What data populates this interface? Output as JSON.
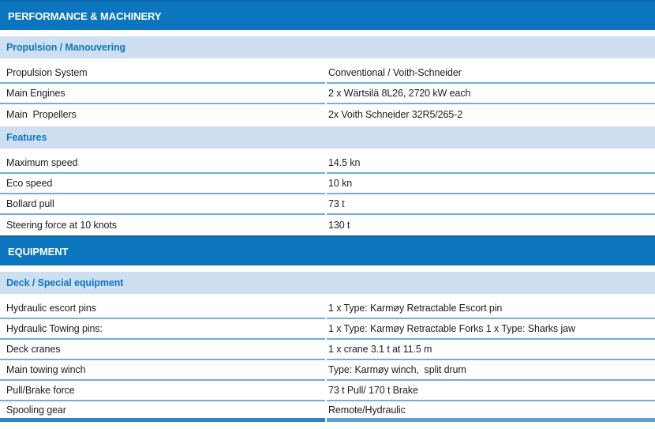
{
  "colors": {
    "section_header_bg": "#0b76be",
    "section_header_edge": "#0a65a8",
    "section_header_text": "#ffffff",
    "subsection_bg": "#cfdff2",
    "subsection_text": "#0e76bd",
    "row_text": "#1d1d1b",
    "row_divider": "#74aed8",
    "bottom_bar_left": "#2f85c2",
    "bottom_bar_right": "#639fcc"
  },
  "sections": [
    {
      "title": "PERFORMANCE & MACHINERY",
      "groups": [
        {
          "subtitle": "Propulsion / Manouvering",
          "rows": [
            {
              "label": "Propulsion System",
              "value": "Conventional / Voith-Schneider"
            },
            {
              "label": "Main Engines",
              "value": "2 x Wärtsilä 8L26, 2720 kW each"
            },
            {
              "label": "Main  Propellers",
              "value": "2x Voith Schneider 32R5/265-2"
            }
          ]
        },
        {
          "subtitle": "Features",
          "rows": [
            {
              "label": "Maximum speed",
              "value": "14.5 kn"
            },
            {
              "label": "Eco speed",
              "value": "10 kn"
            },
            {
              "label": "Bollard pull",
              "value": "73 t"
            },
            {
              "label": "Steering force at 10 knots",
              "value": "130 t"
            }
          ]
        }
      ]
    },
    {
      "title": "EQUIPMENT",
      "groups": [
        {
          "subtitle": "Deck / Special equipment",
          "rows": [
            {
              "label": "Hydraulic escort pins",
              "value": "1 x Type: Karmøy Retractable Escort pin"
            },
            {
              "label": "Hydraulic Towing pins:",
              "value": "1 x Type: Karmøy Retractable Forks 1 x Type: Sharks jaw"
            },
            {
              "label": "Deck cranes",
              "value": "1 x crane 3.1 t at 11.5 m"
            },
            {
              "label": "Main towing winch",
              "value": "Type: Karmøy winch,  split drum"
            },
            {
              "label": "Pull/Brake force",
              "value": "73 t Pull/ 170 t Brake"
            },
            {
              "label": "Spooling gear",
              "value": "Remote/Hydraulic"
            }
          ]
        }
      ]
    }
  ]
}
